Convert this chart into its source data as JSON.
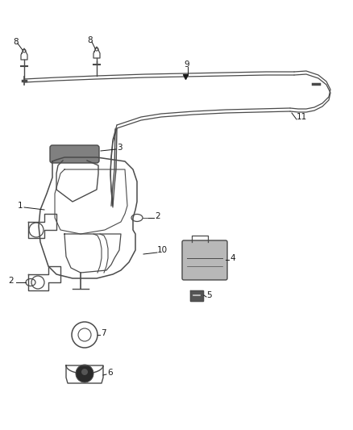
{
  "bg_color": "#ffffff",
  "line_color": "#4a4a4a",
  "text_color": "#1a1a1a",
  "fig_width": 4.38,
  "fig_height": 5.33,
  "dpi": 100
}
